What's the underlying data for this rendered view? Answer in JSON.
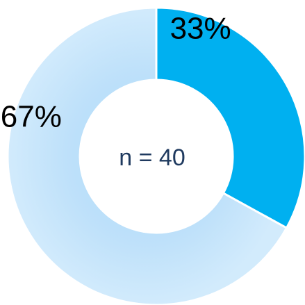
{
  "chart_data": {
    "type": "pie",
    "variant": "donut",
    "center_label": "n = 40",
    "slices": [
      {
        "label": "33%",
        "value": 33,
        "color": "#00b0f0"
      },
      {
        "label": "67%",
        "value": 67,
        "color": "#c6e4fb"
      }
    ],
    "start_angle_deg": 0,
    "direction": "clockwise",
    "legend": "none",
    "grid": false
  }
}
